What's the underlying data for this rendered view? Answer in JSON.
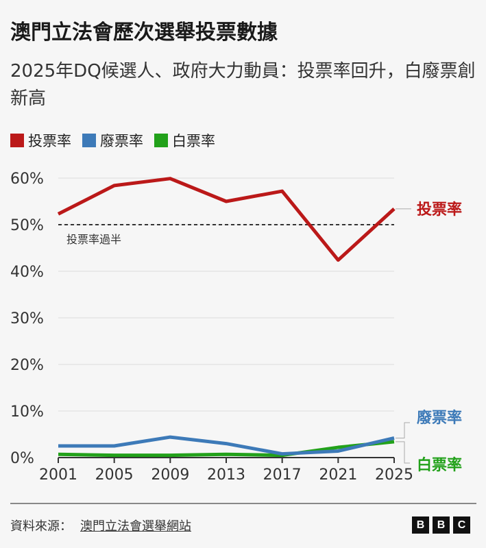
{
  "header": {
    "title": "澳門立法會歷次選舉投票數據",
    "subtitle": "2025年DQ候選人、政府大力動員：投票率回升，白廢票創新高"
  },
  "chart_data": {
    "type": "line",
    "x": [
      2001,
      2005,
      2009,
      2013,
      2017,
      2021,
      2025
    ],
    "xticks": [
      "2001",
      "2005",
      "2009",
      "2013",
      "2017",
      "2021",
      "2025"
    ],
    "ylim": [
      0,
      60
    ],
    "yticks": [
      "0%",
      "10%",
      "20%",
      "30%",
      "40%",
      "50%",
      "60%"
    ],
    "grid": true,
    "legend_position": "top-left",
    "series": [
      {
        "name": "投票率",
        "color": "#bb1919",
        "values": [
          52.3,
          58.4,
          59.9,
          55.0,
          57.2,
          42.4,
          53.4
        ]
      },
      {
        "name": "廢票率",
        "color": "#3d7ab8",
        "values": [
          2.5,
          2.5,
          4.4,
          3.0,
          0.8,
          1.4,
          4.2
        ]
      },
      {
        "name": "白票率",
        "color": "#22a11a",
        "values": [
          0.7,
          0.5,
          0.5,
          0.7,
          0.5,
          2.2,
          3.4
        ]
      }
    ],
    "reference_line": {
      "value": 50,
      "label": "投票率過半"
    }
  },
  "footer": {
    "source_label": "資料來源：",
    "source_link": "澳門立法會選舉網站",
    "logo": "BBC"
  }
}
